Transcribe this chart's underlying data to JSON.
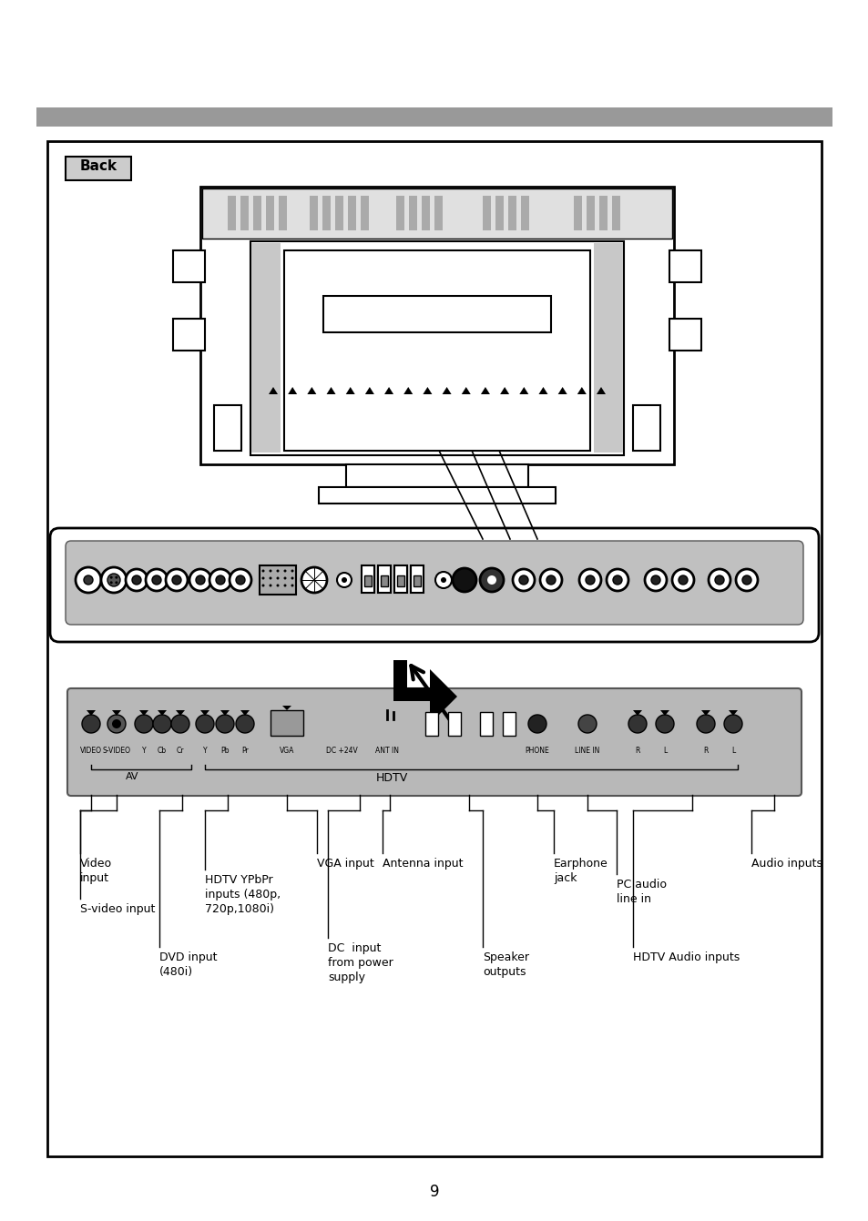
{
  "page_bg": "#ffffff",
  "header_bar_color": "#999999",
  "page_number": "9",
  "back_label": "Back",
  "labels": {
    "video_input": "Video\ninput",
    "s_video_input": "S-video input",
    "dvd_input": "DVD input\n(480i)",
    "hdtv_ypbpr": "HDTV YPbPr\ninputs (480p,\n720p,1080i)",
    "vga_input": "VGA input",
    "antenna_input": "Antenna input",
    "dc_input": "DC  input\nfrom power\nsupply",
    "earphone_jack": "Earphone\njack",
    "pc_audio": "PC audio\nline in",
    "speaker_outputs": "Speaker\noutputs",
    "hdtv_audio": "HDTV Audio inputs",
    "audio_inputs": "Audio inputs",
    "hdtv_label": "HDTV",
    "av_label": "AV"
  }
}
